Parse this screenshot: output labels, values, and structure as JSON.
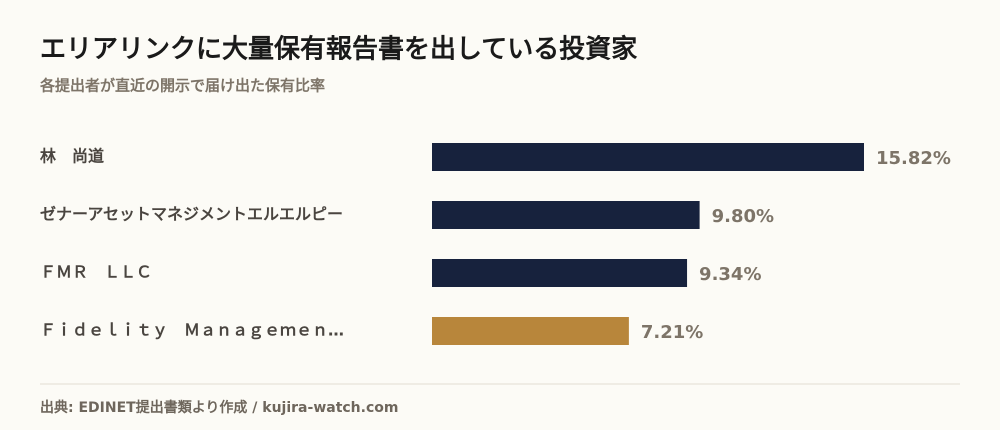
{
  "chart_data": {
    "type": "barh",
    "title": "エリアリンクに大量保有報告書を出している投資家",
    "subtitle": "各提出者が直近の開示で届け出た保有比率",
    "categories": [
      "林　尚道",
      "ゼナーアセットマネジメントエルエルピー",
      "ＦＭＲ　ＬＬＣ",
      "Ｆｉｄｅｌｉｔｙ　Ｍａｎａｇｅｍｅｎ…"
    ],
    "values": [
      15.82,
      9.8,
      9.34,
      7.21
    ],
    "value_labels": [
      "15.82%",
      "9.80%",
      "9.34%",
      "7.21%"
    ],
    "colors": [
      "#17223d",
      "#17223d",
      "#17223d",
      "#b8863b"
    ],
    "source": "出典: EDINET提出書類より作成 / kujira-watch.com"
  }
}
